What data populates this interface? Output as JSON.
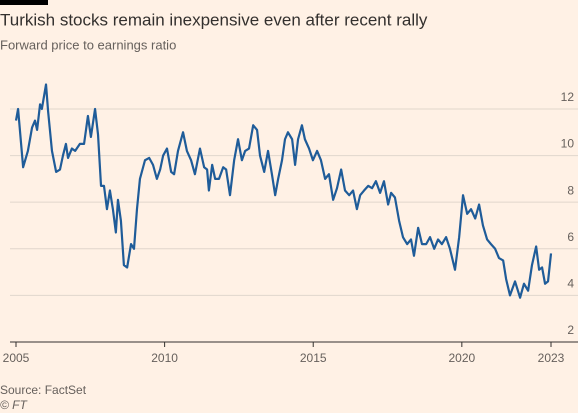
{
  "chart_data": {
    "type": "line",
    "title": "Turkish stocks remain inexpensive even after recent rally",
    "subtitle": "Forward price to earnings ratio",
    "source": "Source: FactSet",
    "credit": "© FT",
    "xlim": [
      2005,
      2023
    ],
    "xticks": [
      2005,
      2010,
      2015,
      2020,
      2023
    ],
    "ylim": [
      2,
      13.5
    ],
    "yticks": [
      2,
      4,
      6,
      8,
      10,
      12
    ],
    "grid": true,
    "x": [
      2005.0,
      2005.07,
      2005.24,
      2005.4,
      2005.54,
      2005.64,
      2005.71,
      2005.81,
      2005.87,
      2006.01,
      2006.08,
      2006.21,
      2006.35,
      2006.48,
      2006.58,
      2006.68,
      2006.75,
      2006.88,
      2006.99,
      2007.15,
      2007.29,
      2007.42,
      2007.52,
      2007.66,
      2007.76,
      2007.86,
      2007.96,
      2008.06,
      2008.16,
      2008.26,
      2008.36,
      2008.43,
      2008.53,
      2008.63,
      2008.74,
      2008.87,
      2008.97,
      2009.07,
      2009.17,
      2009.34,
      2009.48,
      2009.61,
      2009.74,
      2009.85,
      2009.95,
      2010.08,
      2010.22,
      2010.32,
      2010.45,
      2010.62,
      2010.75,
      2010.89,
      2011.02,
      2011.19,
      2011.33,
      2011.43,
      2011.49,
      2011.6,
      2011.7,
      2011.83,
      2011.97,
      2012.07,
      2012.2,
      2012.34,
      2012.47,
      2012.6,
      2012.71,
      2012.84,
      2012.98,
      2013.11,
      2013.21,
      2013.35,
      2013.48,
      2013.61,
      2013.72,
      2013.82,
      2013.95,
      2014.05,
      2014.15,
      2014.29,
      2014.39,
      2014.49,
      2014.62,
      2014.72,
      2014.86,
      2014.99,
      2015.13,
      2015.26,
      2015.4,
      2015.53,
      2015.67,
      2015.8,
      2015.94,
      2016.07,
      2016.21,
      2016.34,
      2016.47,
      2016.58,
      2016.71,
      2016.85,
      2016.98,
      2017.11,
      2017.25,
      2017.38,
      2017.52,
      2017.62,
      2017.75,
      2017.89,
      2018.02,
      2018.16,
      2018.29,
      2018.39,
      2018.53,
      2018.66,
      2018.8,
      2018.93,
      2019.07,
      2019.2,
      2019.33,
      2019.47,
      2019.6,
      2019.77,
      2019.91,
      2020.04,
      2020.18,
      2020.31,
      2020.45,
      2020.58,
      2020.71,
      2020.85,
      2020.98,
      2021.12,
      2021.25,
      2021.39,
      2021.49,
      2021.62,
      2021.79,
      2021.96,
      2022.09,
      2022.23,
      2022.36,
      2022.5,
      2022.6,
      2022.7,
      2022.8,
      2022.9,
      2023.0
    ],
    "series": [
      {
        "color": "#1f5c99",
        "values": [
          11.5,
          12.0,
          9.5,
          10.2,
          11.2,
          11.5,
          11.1,
          12.2,
          12.0,
          13.05,
          11.9,
          10.2,
          9.3,
          9.4,
          10.0,
          10.5,
          9.9,
          10.3,
          10.2,
          10.5,
          10.5,
          11.7,
          10.8,
          12.0,
          10.9,
          8.7,
          8.7,
          7.7,
          8.5,
          7.7,
          6.7,
          8.1,
          7.2,
          5.3,
          5.2,
          6.2,
          6.0,
          7.7,
          9.0,
          9.8,
          9.9,
          9.6,
          9.0,
          9.4,
          10.0,
          10.3,
          9.3,
          9.2,
          10.2,
          11.0,
          10.2,
          9.8,
          9.2,
          10.3,
          9.5,
          9.4,
          8.5,
          9.6,
          9.0,
          9.0,
          9.5,
          9.4,
          8.3,
          9.8,
          10.7,
          9.8,
          10.2,
          10.3,
          11.3,
          11.1,
          10.0,
          9.3,
          10.2,
          9.2,
          8.3,
          9.0,
          9.8,
          10.7,
          11.0,
          10.7,
          9.6,
          10.7,
          11.3,
          10.7,
          10.3,
          9.8,
          10.2,
          9.8,
          9.0,
          9.2,
          8.1,
          8.6,
          9.4,
          8.5,
          8.3,
          8.5,
          7.7,
          8.3,
          8.5,
          8.7,
          8.6,
          8.9,
          8.4,
          8.9,
          7.9,
          8.4,
          8.2,
          7.2,
          6.5,
          6.2,
          6.4,
          5.7,
          6.9,
          6.2,
          6.2,
          6.5,
          6.0,
          6.4,
          6.2,
          6.5,
          6.0,
          5.1,
          6.5,
          8.3,
          7.5,
          7.7,
          7.3,
          7.9,
          7.0,
          6.4,
          6.2,
          6.0,
          5.6,
          5.5,
          4.7,
          4.0,
          4.6,
          3.9,
          4.5,
          4.2,
          5.3,
          6.1,
          5.1,
          5.2,
          4.5,
          4.6,
          5.8
        ]
      }
    ]
  }
}
